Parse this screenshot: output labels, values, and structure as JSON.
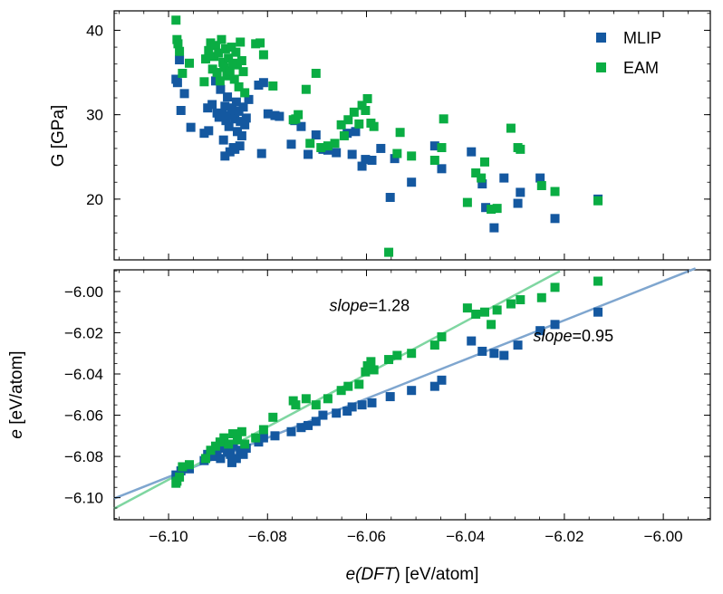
{
  "colors": {
    "mlip": "#1458a0",
    "eam": "#0aad43",
    "mlip_fit": "#7fa6cf",
    "eam_fit": "#7fd6a1"
  },
  "chart_data": [
    {
      "type": "scatter",
      "panel": "top",
      "title": "",
      "xlabel": "",
      "ylabel": "G [GPa]",
      "xlim": [
        -6.111,
        -5.9905
      ],
      "ylim": [
        12.8,
        42.3
      ],
      "xticks": [
        -6.1,
        -6.08,
        -6.06,
        -6.04,
        -6.02,
        -6.0
      ],
      "yticks": [
        20,
        30,
        40
      ],
      "ytick_labels": [
        "20",
        "30",
        "40"
      ],
      "legend": {
        "placement": "top-right",
        "entries": [
          "MLIP",
          "EAM"
        ]
      },
      "series": [
        {
          "name": "MLIP",
          "color_key": "mlip",
          "points": [
            [
              -6.0985,
              34.2
            ],
            [
              -6.0982,
              33.8
            ],
            [
              -6.0978,
              36.5
            ],
            [
              -6.0975,
              30.5
            ],
            [
              -6.0968,
              32.5
            ],
            [
              -6.0955,
              28.5
            ],
            [
              -6.0928,
              27.8
            ],
            [
              -6.0921,
              30.8
            ],
            [
              -6.0919,
              28.1
            ],
            [
              -6.0912,
              31.2
            ],
            [
              -6.0905,
              34.0
            ],
            [
              -6.0902,
              30.2
            ],
            [
              -6.0898,
              29.7
            ],
            [
              -6.0895,
              33.0
            ],
            [
              -6.0892,
              30.0
            ],
            [
              -6.0889,
              27.0
            ],
            [
              -6.0886,
              31.0
            ],
            [
              -6.0884,
              29.3
            ],
            [
              -6.0881,
              32.1
            ],
            [
              -6.0878,
              28.6
            ],
            [
              -6.0875,
              29.9
            ],
            [
              -6.0872,
              30.8
            ],
            [
              -6.0869,
              26.1
            ],
            [
              -6.0866,
              29.5
            ],
            [
              -6.0863,
              31.5
            ],
            [
              -6.0861,
              28.0
            ],
            [
              -6.0858,
              30.4
            ],
            [
              -6.0855,
              29.2
            ],
            [
              -6.0852,
              27.5
            ],
            [
              -6.0849,
              30.9
            ],
            [
              -6.0846,
              28.8
            ],
            [
              -6.0843,
              29.6
            ],
            [
              -6.0838,
              31.8
            ],
            [
              -6.0886,
              25.1
            ],
            [
              -6.0876,
              25.6
            ],
            [
              -6.0866,
              25.9
            ],
            [
              -6.0856,
              26.3
            ],
            [
              -6.0818,
              33.5
            ],
            [
              -6.0812,
              25.4
            ],
            [
              -6.0808,
              33.8
            ],
            [
              -6.0799,
              30.1
            ],
            [
              -6.0785,
              29.9
            ],
            [
              -6.0776,
              29.8
            ],
            [
              -6.0752,
              26.5
            ],
            [
              -6.0745,
              29.3
            ],
            [
              -6.0732,
              28.6
            ],
            [
              -6.0718,
              25.3
            ],
            [
              -6.0702,
              27.6
            ],
            [
              -6.0688,
              25.9
            ],
            [
              -6.0678,
              25.8
            ],
            [
              -6.0661,
              25.5
            ],
            [
              -6.0639,
              27.8
            ],
            [
              -6.0629,
              25.3
            ],
            [
              -6.0622,
              28.0
            ],
            [
              -6.0609,
              23.9
            ],
            [
              -6.0602,
              24.7
            ],
            [
              -6.0589,
              24.6
            ],
            [
              -6.0571,
              26.0
            ],
            [
              -6.0552,
              20.2
            ],
            [
              -6.0543,
              24.8
            ],
            [
              -6.0509,
              22.0
            ],
            [
              -6.0462,
              26.3
            ],
            [
              -6.0448,
              23.6
            ],
            [
              -6.0388,
              25.6
            ],
            [
              -6.0366,
              21.8
            ],
            [
              -6.0359,
              19.0
            ],
            [
              -6.0342,
              16.6
            ],
            [
              -6.0322,
              22.5
            ],
            [
              -6.0294,
              19.5
            ],
            [
              -6.0289,
              20.8
            ],
            [
              -6.0249,
              22.5
            ],
            [
              -6.0219,
              17.7
            ],
            [
              -6.0132,
              20.0
            ]
          ]
        },
        {
          "name": "EAM",
          "color_key": "eam",
          "points": [
            [
              -6.0985,
              41.2
            ],
            [
              -6.0983,
              38.9
            ],
            [
              -6.0981,
              38.4
            ],
            [
              -6.0978,
              37.5
            ],
            [
              -6.0972,
              34.9
            ],
            [
              -6.0958,
              36.1
            ],
            [
              -6.0928,
              33.9
            ],
            [
              -6.0925,
              36.6
            ],
            [
              -6.0919,
              37.6
            ],
            [
              -6.0915,
              38.5
            ],
            [
              -6.0911,
              35.4
            ],
            [
              -6.0908,
              36.9
            ],
            [
              -6.0905,
              38.2
            ],
            [
              -6.0902,
              35.0
            ],
            [
              -6.0899,
              37.3
            ],
            [
              -6.0896,
              34.0
            ],
            [
              -6.0893,
              38.9
            ],
            [
              -6.089,
              36.2
            ],
            [
              -6.0888,
              35.6
            ],
            [
              -6.0885,
              37.8
            ],
            [
              -6.0882,
              34.6
            ],
            [
              -6.0879,
              36.7
            ],
            [
              -6.0876,
              35.2
            ],
            [
              -6.0873,
              38.0
            ],
            [
              -6.087,
              36.1
            ],
            [
              -6.0867,
              34.2
            ],
            [
              -6.0864,
              37.4
            ],
            [
              -6.0861,
              35.9
            ],
            [
              -6.0858,
              33.3
            ],
            [
              -6.0855,
              38.6
            ],
            [
              -6.0852,
              36.4
            ],
            [
              -6.0849,
              35.1
            ],
            [
              -6.0846,
              32.6
            ],
            [
              -6.0824,
              38.4
            ],
            [
              -6.0815,
              38.5
            ],
            [
              -6.0808,
              37.1
            ],
            [
              -6.0789,
              33.4
            ],
            [
              -6.0748,
              29.4
            ],
            [
              -6.0743,
              29.5
            ],
            [
              -6.0738,
              30.0
            ],
            [
              -6.0722,
              33.0
            ],
            [
              -6.0714,
              26.6
            ],
            [
              -6.0702,
              34.9
            ],
            [
              -6.0692,
              26.1
            ],
            [
              -6.0678,
              26.3
            ],
            [
              -6.0664,
              26.6
            ],
            [
              -6.0651,
              28.8
            ],
            [
              -6.0645,
              27.5
            ],
            [
              -6.0637,
              29.4
            ],
            [
              -6.0625,
              30.3
            ],
            [
              -6.0615,
              28.9
            ],
            [
              -6.0609,
              31.1
            ],
            [
              -6.0602,
              30.5
            ],
            [
              -6.0598,
              31.9
            ],
            [
              -6.0591,
              29.0
            ],
            [
              -6.0585,
              28.6
            ],
            [
              -6.0555,
              13.7
            ],
            [
              -6.0538,
              25.4
            ],
            [
              -6.0532,
              27.9
            ],
            [
              -6.0509,
              25.1
            ],
            [
              -6.0462,
              24.6
            ],
            [
              -6.0448,
              26.1
            ],
            [
              -6.0444,
              29.5
            ],
            [
              -6.0396,
              19.6
            ],
            [
              -6.0379,
              23.1
            ],
            [
              -6.0368,
              22.5
            ],
            [
              -6.0361,
              24.4
            ],
            [
              -6.0348,
              18.8
            ],
            [
              -6.0336,
              18.9
            ],
            [
              -6.0308,
              28.4
            ],
            [
              -6.0294,
              26.1
            ],
            [
              -6.0289,
              25.9
            ],
            [
              -6.0246,
              21.6
            ],
            [
              -6.0219,
              20.9
            ],
            [
              -6.0132,
              19.8
            ]
          ]
        }
      ]
    },
    {
      "type": "scatter",
      "panel": "bottom",
      "title": "",
      "xlabel_prefix": "e(",
      "xlabel_italic": "DFT",
      "xlabel_suffix": ") [eV/atom]",
      "ylabel_italic": "e",
      "ylabel_suffix": " [eV/atom]",
      "xlim": [
        -6.111,
        -5.9905
      ],
      "ylim": [
        -6.1107,
        -5.9895
      ],
      "xticks": [
        -6.1,
        -6.08,
        -6.06,
        -6.04,
        -6.02,
        -6.0
      ],
      "xtick_labels": [
        "−6.10",
        "−6.08",
        "−6.06",
        "−6.04",
        "−6.02",
        "−6.00"
      ],
      "yticks": [
        -6.1,
        -6.08,
        -6.06,
        -6.04,
        -6.02,
        -6.0
      ],
      "ytick_labels": [
        "−6.10",
        "−6.08",
        "−6.06",
        "−6.04",
        "−6.02",
        "−6.00"
      ],
      "fit_lines": [
        {
          "name": "MLIP fit",
          "color_key": "mlip_fit",
          "slope": 0.95,
          "x": [
            -6.111,
            -5.9935
          ],
          "y": [
            -6.1004,
            -5.9888
          ]
        },
        {
          "name": "EAM fit",
          "color_key": "eam_fit",
          "slope": 1.28,
          "x": [
            -6.111,
            -6.0209
          ],
          "y": [
            -6.1053,
            -5.9901
          ]
        }
      ],
      "annotations": [
        {
          "italic": "slope",
          "text": "=1.28",
          "x": -6.0675,
          "y": -6.0095
        },
        {
          "italic": "slope",
          "text": "=0.95",
          "x": -6.0263,
          "y": -6.0243
        }
      ],
      "series": [
        {
          "name": "MLIP",
          "color_key": "mlip",
          "points": [
            [
              -6.0985,
              -6.089
            ],
            [
              -6.0975,
              -6.087
            ],
            [
              -6.0958,
              -6.086
            ],
            [
              -6.0928,
              -6.082
            ],
            [
              -6.0921,
              -6.079
            ],
            [
              -6.0912,
              -6.08
            ],
            [
              -6.0902,
              -6.078
            ],
            [
              -6.0895,
              -6.081
            ],
            [
              -6.0889,
              -6.076
            ],
            [
              -6.0881,
              -6.078
            ],
            [
              -6.0875,
              -6.079
            ],
            [
              -6.0869,
              -6.075
            ],
            [
              -6.0863,
              -6.081
            ],
            [
              -6.0855,
              -6.077
            ],
            [
              -6.0849,
              -6.079
            ],
            [
              -6.0843,
              -6.076
            ],
            [
              -6.0872,
              -6.083
            ],
            [
              -6.0818,
              -6.073
            ],
            [
              -6.0808,
              -6.071
            ],
            [
              -6.0785,
              -6.07
            ],
            [
              -6.0752,
              -6.068
            ],
            [
              -6.0732,
              -6.066
            ],
            [
              -6.0718,
              -6.065
            ],
            [
              -6.0702,
              -6.063
            ],
            [
              -6.0688,
              -6.06
            ],
            [
              -6.0661,
              -6.059
            ],
            [
              -6.0639,
              -6.058
            ],
            [
              -6.0629,
              -6.056
            ],
            [
              -6.0609,
              -6.055
            ],
            [
              -6.0589,
              -6.054
            ],
            [
              -6.0552,
              -6.051
            ],
            [
              -6.0509,
              -6.048
            ],
            [
              -6.0462,
              -6.046
            ],
            [
              -6.0448,
              -6.043
            ],
            [
              -6.0388,
              -6.024
            ],
            [
              -6.0366,
              -6.029
            ],
            [
              -6.0342,
              -6.03
            ],
            [
              -6.0322,
              -6.031
            ],
            [
              -6.0294,
              -6.026
            ],
            [
              -6.0249,
              -6.019
            ],
            [
              -6.0219,
              -6.016
            ],
            [
              -6.0132,
              -6.01
            ]
          ]
        },
        {
          "name": "EAM",
          "color_key": "eam",
          "points": [
            [
              -6.0985,
              -6.093
            ],
            [
              -6.0983,
              -6.092
            ],
            [
              -6.0978,
              -6.09
            ],
            [
              -6.0972,
              -6.085
            ],
            [
              -6.0958,
              -6.084
            ],
            [
              -6.0925,
              -6.081
            ],
            [
              -6.0915,
              -6.077
            ],
            [
              -6.0905,
              -6.075
            ],
            [
              -6.0896,
              -6.073
            ],
            [
              -6.0888,
              -6.071
            ],
            [
              -6.0879,
              -6.074
            ],
            [
              -6.087,
              -6.069
            ],
            [
              -6.0861,
              -6.072
            ],
            [
              -6.0852,
              -6.068
            ],
            [
              -6.0846,
              -6.074
            ],
            [
              -6.0824,
              -6.071
            ],
            [
              -6.0808,
              -6.067
            ],
            [
              -6.0789,
              -6.061
            ],
            [
              -6.0748,
              -6.053
            ],
            [
              -6.0743,
              -6.055
            ],
            [
              -6.0722,
              -6.052
            ],
            [
              -6.0702,
              -6.055
            ],
            [
              -6.0678,
              -6.052
            ],
            [
              -6.0651,
              -6.048
            ],
            [
              -6.0637,
              -6.046
            ],
            [
              -6.0615,
              -6.045
            ],
            [
              -6.0602,
              -6.039
            ],
            [
              -6.0598,
              -6.036
            ],
            [
              -6.0591,
              -6.034
            ],
            [
              -6.0585,
              -6.038
            ],
            [
              -6.0555,
              -6.033
            ],
            [
              -6.0538,
              -6.031
            ],
            [
              -6.0509,
              -6.03
            ],
            [
              -6.0462,
              -6.026
            ],
            [
              -6.0448,
              -6.022
            ],
            [
              -6.0396,
              -6.008
            ],
            [
              -6.0379,
              -6.011
            ],
            [
              -6.0361,
              -6.01
            ],
            [
              -6.0348,
              -6.016
            ],
            [
              -6.0336,
              -6.009
            ],
            [
              -6.0308,
              -6.006
            ],
            [
              -6.0289,
              -6.004
            ],
            [
              -6.0246,
              -6.003
            ],
            [
              -6.0219,
              -5.998
            ],
            [
              -6.0132,
              -5.995
            ]
          ]
        }
      ]
    }
  ]
}
